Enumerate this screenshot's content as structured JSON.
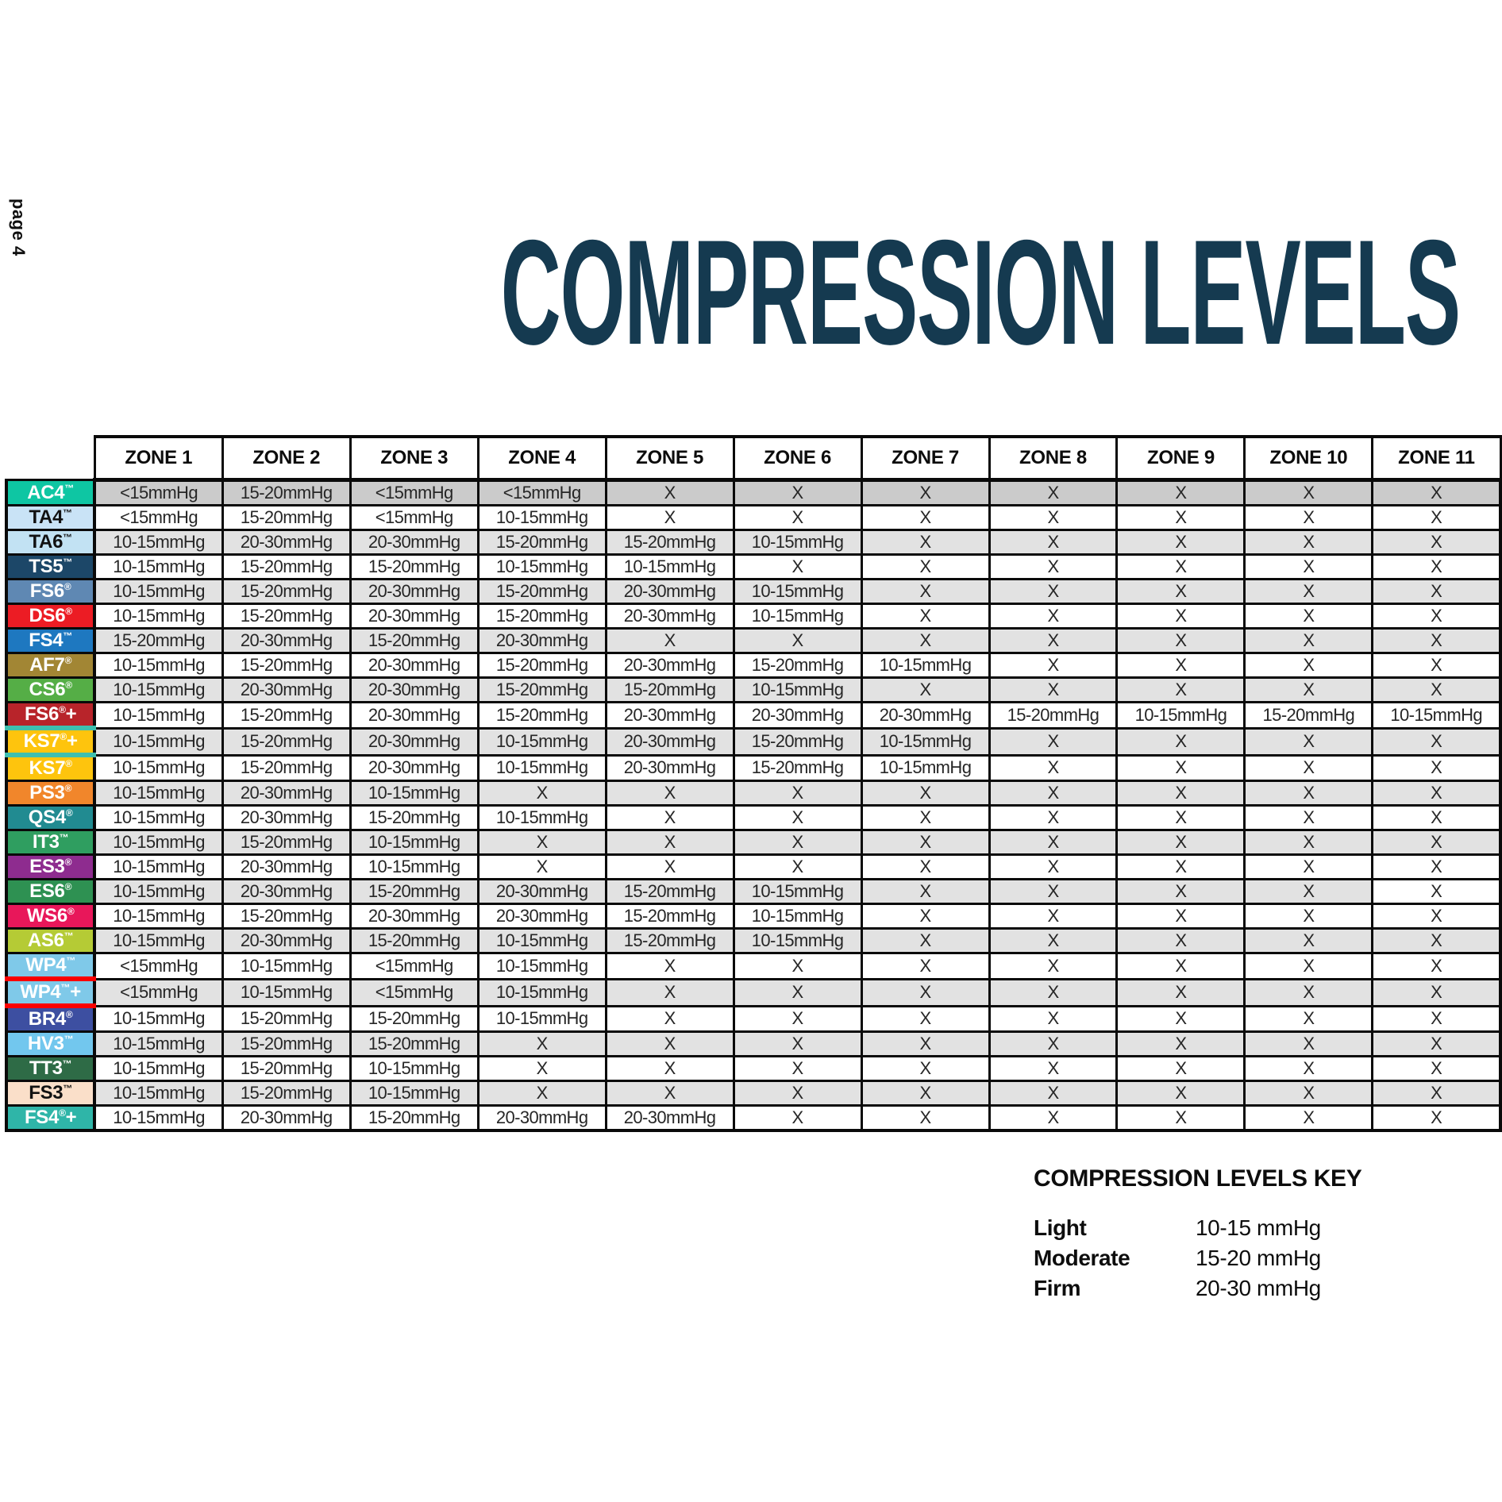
{
  "page": {
    "page_label": "page 4",
    "title": "COMPRESSION LEVELS",
    "title_color": "#153A50"
  },
  "table": {
    "zone_headers": [
      "ZONE 1",
      "ZONE 2",
      "ZONE 3",
      "ZONE 4",
      "ZONE 5",
      "ZONE 6",
      "ZONE 7",
      "ZONE 8",
      "ZONE 9",
      "ZONE 10",
      "ZONE 11"
    ],
    "crossed_symbol": "X",
    "rows": [
      {
        "product": "AC4",
        "mark": "™",
        "plus": "",
        "label_bg": "#0EC6A3",
        "label_fg": "#FFFFFF",
        "row_bg": "#CBCBCB",
        "accent": "",
        "values": [
          "<15mmHg",
          "15-20mmHg",
          "<15mmHg",
          "<15mmHg",
          "X",
          "X",
          "X",
          "X",
          "X",
          "X",
          "X"
        ]
      },
      {
        "product": "TA4",
        "mark": "™",
        "plus": "",
        "label_bg": "#C9E3F6",
        "label_fg": "#111111",
        "row_bg": "#FFFFFF",
        "accent": "",
        "values": [
          "<15mmHg",
          "15-20mmHg",
          "<15mmHg",
          "10-15mmHg",
          "X",
          "X",
          "X",
          "X",
          "X",
          "X",
          "X"
        ]
      },
      {
        "product": "TA6",
        "mark": "™",
        "plus": "",
        "label_bg": "#C2E2F3",
        "label_fg": "#111111",
        "row_bg": "#E2E2E2",
        "accent": "",
        "values": [
          "10-15mmHg",
          "20-30mmHg",
          "20-30mmHg",
          "15-20mmHg",
          "15-20mmHg",
          "10-15mmHg",
          "X",
          "X",
          "X",
          "X",
          "X"
        ]
      },
      {
        "product": "TS5",
        "mark": "™",
        "plus": "",
        "label_bg": "#1C4768",
        "label_fg": "#FFFFFF",
        "row_bg": "#FFFFFF",
        "accent": "",
        "values": [
          "10-15mmHg",
          "15-20mmHg",
          "15-20mmHg",
          "10-15mmHg",
          "10-15mmHg",
          "X",
          "X",
          "X",
          "X",
          "X",
          "X"
        ]
      },
      {
        "product": "FS6",
        "mark": "®",
        "plus": "",
        "label_bg": "#5F88B3",
        "label_fg": "#FFFFFF",
        "row_bg": "#E2E2E2",
        "accent": "",
        "values": [
          "10-15mmHg",
          "15-20mmHg",
          "20-30mmHg",
          "15-20mmHg",
          "20-30mmHg",
          "10-15mmHg",
          "X",
          "X",
          "X",
          "X",
          "X"
        ]
      },
      {
        "product": "DS6",
        "mark": "®",
        "plus": "",
        "label_bg": "#EC1C24",
        "label_fg": "#FFFFFF",
        "row_bg": "#FFFFFF",
        "accent": "",
        "values": [
          "10-15mmHg",
          "15-20mmHg",
          "20-30mmHg",
          "15-20mmHg",
          "20-30mmHg",
          "10-15mmHg",
          "X",
          "X",
          "X",
          "X",
          "X"
        ]
      },
      {
        "product": "FS4",
        "mark": "™",
        "plus": "",
        "label_bg": "#1E78C0",
        "label_fg": "#FFFFFF",
        "row_bg": "#E2E2E2",
        "accent": "",
        "values": [
          "15-20mmHg",
          "20-30mmHg",
          "15-20mmHg",
          "20-30mmHg",
          "X",
          "X",
          "X",
          "X",
          "X",
          "X",
          "X"
        ]
      },
      {
        "product": "AF7",
        "mark": "®",
        "plus": "",
        "label_bg": "#A28634",
        "label_fg": "#FFFFFF",
        "row_bg": "#FFFFFF",
        "accent": "",
        "values": [
          "10-15mmHg",
          "15-20mmHg",
          "20-30mmHg",
          "15-20mmHg",
          "20-30mmHg",
          "15-20mmHg",
          "10-15mmHg",
          "X",
          "X",
          "X",
          "X"
        ]
      },
      {
        "product": "CS6",
        "mark": "®",
        "plus": "",
        "label_bg": "#55AE46",
        "label_fg": "#FFFFFF",
        "row_bg": "#E2E2E2",
        "accent": "",
        "values": [
          "10-15mmHg",
          "20-30mmHg",
          "20-30mmHg",
          "15-20mmHg",
          "15-20mmHg",
          "10-15mmHg",
          "X",
          "X",
          "X",
          "X",
          "X"
        ]
      },
      {
        "product": "FS6",
        "mark": "®",
        "plus": "+",
        "label_bg": "#B8242A",
        "label_fg": "#FFFFFF",
        "row_bg": "#FFFFFF",
        "accent": "",
        "values": [
          "10-15mmHg",
          "15-20mmHg",
          "20-30mmHg",
          "15-20mmHg",
          "20-30mmHg",
          "20-30mmHg",
          "20-30mmHg",
          "15-20mmHg",
          "10-15mmHg",
          "15-20mmHg",
          "10-15mmHg"
        ]
      },
      {
        "product": "KS7",
        "mark": "®",
        "plus": "+",
        "label_bg": "#FEC40D",
        "label_fg": "#FFFFFF",
        "row_bg": "#E2E2E2",
        "accent": "#3EBFAE",
        "values": [
          "10-15mmHg",
          "15-20mmHg",
          "20-30mmHg",
          "10-15mmHg",
          "20-30mmHg",
          "15-20mmHg",
          "10-15mmHg",
          "X",
          "X",
          "X",
          "X"
        ]
      },
      {
        "product": "KS7",
        "mark": "®",
        "plus": "",
        "label_bg": "#FEC40D",
        "label_fg": "#FFFFFF",
        "row_bg": "#FFFFFF",
        "accent": "",
        "values": [
          "10-15mmHg",
          "15-20mmHg",
          "20-30mmHg",
          "10-15mmHg",
          "20-30mmHg",
          "15-20mmHg",
          "10-15mmHg",
          "X",
          "X",
          "X",
          "X"
        ]
      },
      {
        "product": "PS3",
        "mark": "®",
        "plus": "",
        "label_bg": "#F1862B",
        "label_fg": "#FFFFFF",
        "row_bg": "#E2E2E2",
        "accent": "",
        "values": [
          "10-15mmHg",
          "20-30mmHg",
          "10-15mmHg",
          "X",
          "X",
          "X",
          "X",
          "X",
          "X",
          "X",
          "X"
        ]
      },
      {
        "product": "QS4",
        "mark": "®",
        "plus": "",
        "label_bg": "#218B91",
        "label_fg": "#FFFFFF",
        "row_bg": "#FFFFFF",
        "accent": "",
        "values": [
          "10-15mmHg",
          "20-30mmHg",
          "15-20mmHg",
          "10-15mmHg",
          "X",
          "X",
          "X",
          "X",
          "X",
          "X",
          "X"
        ]
      },
      {
        "product": "IT3",
        "mark": "™",
        "plus": "",
        "label_bg": "#2F9E60",
        "label_fg": "#FFFFFF",
        "row_bg": "#E2E2E2",
        "accent": "",
        "values": [
          "10-15mmHg",
          "15-20mmHg",
          "10-15mmHg",
          "X",
          "X",
          "X",
          "X",
          "X",
          "X",
          "X",
          "X"
        ]
      },
      {
        "product": "ES3",
        "mark": "®",
        "plus": "",
        "label_bg": "#8E2C8F",
        "label_fg": "#FFFFFF",
        "row_bg": "#FFFFFF",
        "accent": "",
        "values": [
          "10-15mmHg",
          "20-30mmHg",
          "10-15mmHg",
          "X",
          "X",
          "X",
          "X",
          "X",
          "X",
          "X",
          "X"
        ]
      },
      {
        "product": "ES6",
        "mark": "®",
        "plus": "",
        "label_bg": "#2E9152",
        "label_fg": "#FFFFFF",
        "row_bg": "#E2E2E2",
        "accent": "",
        "cell_overrides": {
          "10": "#FFFFFF"
        },
        "values": [
          "10-15mmHg",
          "20-30mmHg",
          "15-20mmHg",
          "20-30mmHg",
          "15-20mmHg",
          "10-15mmHg",
          "X",
          "X",
          "X",
          "X",
          "X"
        ]
      },
      {
        "product": "WS6",
        "mark": "®",
        "plus": "",
        "label_bg": "#E8175A",
        "label_fg": "#FFFFFF",
        "row_bg": "#FFFFFF",
        "accent": "",
        "values": [
          "10-15mmHg",
          "15-20mmHg",
          "20-30mmHg",
          "20-30mmHg",
          "15-20mmHg",
          "10-15mmHg",
          "X",
          "X",
          "X",
          "X",
          "X"
        ]
      },
      {
        "product": "AS6",
        "mark": "™",
        "plus": "",
        "label_bg": "#B5CB35",
        "label_fg": "#FFFFFF",
        "row_bg": "#E2E2E2",
        "accent": "",
        "values": [
          "10-15mmHg",
          "20-30mmHg",
          "15-20mmHg",
          "10-15mmHg",
          "15-20mmHg",
          "10-15mmHg",
          "X",
          "X",
          "X",
          "X",
          "X"
        ]
      },
      {
        "product": "WP4",
        "mark": "™",
        "plus": "",
        "label_bg": "#7FC9E9",
        "label_fg": "#FFFFFF",
        "row_bg": "#FFFFFF",
        "accent": "",
        "values": [
          "<15mmHg",
          "10-15mmHg",
          "<15mmHg",
          "10-15mmHg",
          "X",
          "X",
          "X",
          "X",
          "X",
          "X",
          "X"
        ]
      },
      {
        "product": "WP4",
        "mark": "™",
        "plus": "+",
        "label_bg": "#7FC9E9",
        "label_fg": "#FFFFFF",
        "row_bg": "#E2E2E2",
        "accent": "#FA0000",
        "values": [
          "<15mmHg",
          "10-15mmHg",
          "<15mmHg",
          "10-15mmHg",
          "X",
          "X",
          "X",
          "X",
          "X",
          "X",
          "X"
        ]
      },
      {
        "product": "BR4",
        "mark": "®",
        "plus": "",
        "label_bg": "#3D4FA1",
        "label_fg": "#FFFFFF",
        "row_bg": "#FFFFFF",
        "accent": "",
        "values": [
          "10-15mmHg",
          "15-20mmHg",
          "15-20mmHg",
          "10-15mmHg",
          "X",
          "X",
          "X",
          "X",
          "X",
          "X",
          "X"
        ]
      },
      {
        "product": "HV3",
        "mark": "™",
        "plus": "",
        "label_bg": "#72C7EE",
        "label_fg": "#FFFFFF",
        "row_bg": "#E2E2E2",
        "accent": "",
        "values": [
          "10-15mmHg",
          "15-20mmHg",
          "15-20mmHg",
          "X",
          "X",
          "X",
          "X",
          "X",
          "X",
          "X",
          "X"
        ]
      },
      {
        "product": "TT3",
        "mark": "™",
        "plus": "",
        "label_bg": "#2E6B46",
        "label_fg": "#FFFFFF",
        "row_bg": "#FFFFFF",
        "accent": "",
        "values": [
          "10-15mmHg",
          "15-20mmHg",
          "10-15mmHg",
          "X",
          "X",
          "X",
          "X",
          "X",
          "X",
          "X",
          "X"
        ]
      },
      {
        "product": "FS3",
        "mark": "™",
        "plus": "",
        "label_bg": "#FADFC9",
        "label_fg": "#111111",
        "row_bg": "#E2E2E2",
        "accent": "",
        "values": [
          "10-15mmHg",
          "15-20mmHg",
          "10-15mmHg",
          "X",
          "X",
          "X",
          "X",
          "X",
          "X",
          "X",
          "X"
        ]
      },
      {
        "product": "FS4",
        "mark": "®",
        "plus": "+",
        "label_bg": "#2FB5A8",
        "label_fg": "#FFFFFF",
        "row_bg": "#FFFFFF",
        "accent": "",
        "values": [
          "10-15mmHg",
          "20-30mmHg",
          "15-20mmHg",
          "20-30mmHg",
          "20-30mmHg",
          "X",
          "X",
          "X",
          "X",
          "X",
          "X"
        ]
      }
    ]
  },
  "key": {
    "title": "COMPRESSION LEVELS KEY",
    "entries": [
      {
        "label": "Light",
        "value": "10-15 mmHg"
      },
      {
        "label": "Moderate",
        "value": "15-20 mmHg"
      },
      {
        "label": "Firm",
        "value": "20-30 mmHg"
      }
    ]
  }
}
